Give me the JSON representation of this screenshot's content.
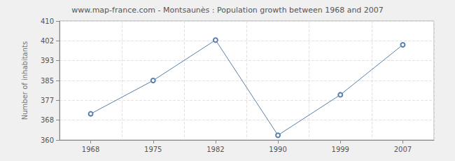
{
  "chart_data": {
    "type": "line",
    "title": "www.map-france.com - Montsaunès : Population growth between 1968 and 2007",
    "y_label": "Number of inhabitants",
    "categories": [
      "1968",
      "1975",
      "1982",
      "1990",
      "1999",
      "2007"
    ],
    "values": [
      371,
      385,
      402,
      362,
      379,
      400
    ],
    "color": "#5a7fa8",
    "marker": "circle",
    "ylim": [
      360,
      410
    ],
    "yticks": [
      360,
      {
        "value": 368.33,
        "label": "368"
      },
      {
        "value": 376.67,
        "label": "377"
      },
      385,
      {
        "value": 393.33,
        "label": "393"
      },
      {
        "value": 401.67,
        "label": "402"
      },
      410
    ],
    "grid": true
  }
}
